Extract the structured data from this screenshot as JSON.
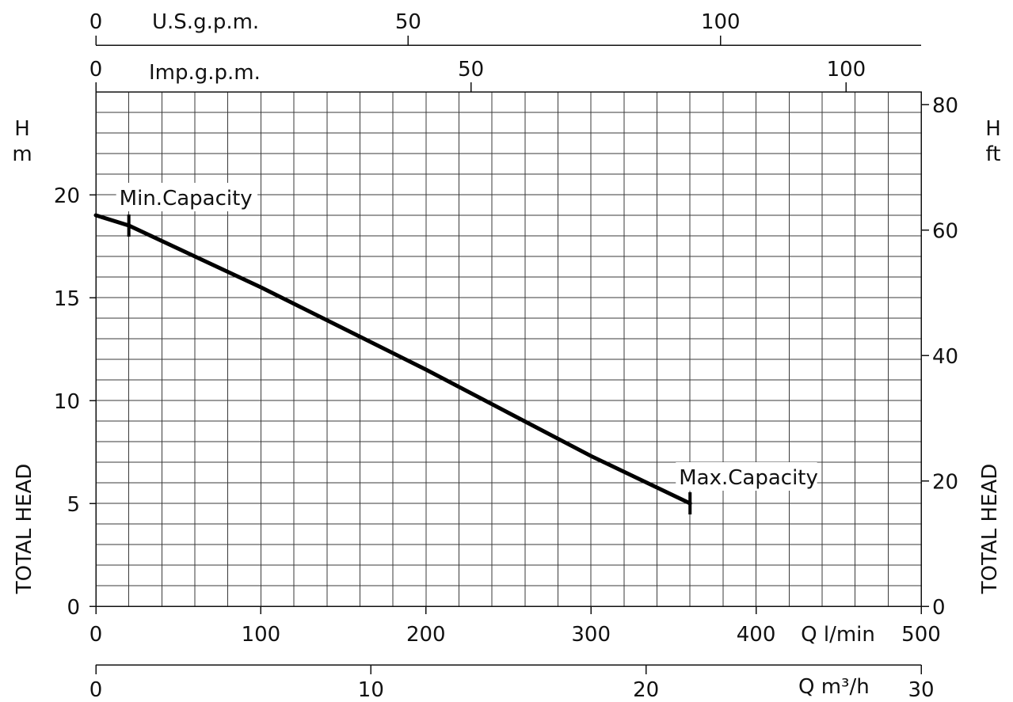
{
  "chart_data": {
    "type": "line",
    "title": "",
    "xlabel": "Q l/min",
    "ylabel": "TOTAL HEAD",
    "y_unit_left": "H m",
    "y_unit_right": "H ft",
    "xlim": [
      0,
      500
    ],
    "ylim": [
      0,
      25
    ],
    "grid": true,
    "x_ticks": [
      0,
      100,
      200,
      300,
      400,
      500
    ],
    "y_ticks": [
      0,
      5,
      10,
      15,
      20
    ],
    "secondary_axes": {
      "top_usgpm": {
        "label": "U.S.g.p.m.",
        "ticks": [
          0,
          50,
          100
        ],
        "lpm_per_unit": 3.785
      },
      "top_impgpm": {
        "label": "Imp.g.p.m.",
        "ticks": [
          0,
          50,
          100
        ],
        "lpm_per_unit": 4.546
      },
      "right_ft": {
        "ticks": [
          0,
          20,
          40,
          60,
          80
        ],
        "m_per_unit": 0.3048
      },
      "bottom_m3h": {
        "label": "Q m³/h",
        "ticks": [
          0,
          10,
          20,
          30
        ],
        "lpm_per_unit": 16.667
      }
    },
    "series": [
      {
        "x": [
          0,
          20,
          60,
          100,
          150,
          200,
          250,
          300,
          360
        ],
        "y": [
          19.0,
          18.5,
          17.0,
          15.5,
          13.5,
          11.5,
          9.4,
          7.3,
          5.0
        ]
      }
    ],
    "annotations": [
      {
        "text": "Min.Capacity",
        "x": 20,
        "y": 18.5
      },
      {
        "text": "Max.Capacity",
        "x": 360,
        "y": 5.0
      }
    ]
  }
}
